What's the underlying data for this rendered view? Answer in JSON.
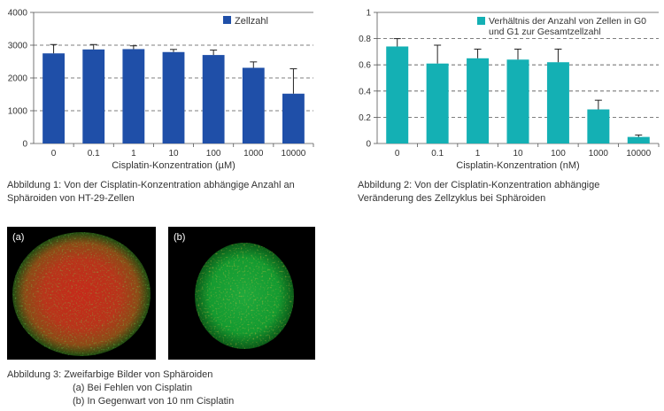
{
  "charts": {
    "left": {
      "type": "bar",
      "color": "#1f4fa8",
      "categories": [
        "0",
        "0.1",
        "1",
        "10",
        "100",
        "1000",
        "10000"
      ],
      "values": [
        2750,
        2870,
        2880,
        2790,
        2700,
        2310,
        1520
      ],
      "errors": [
        270,
        150,
        100,
        80,
        150,
        180,
        760
      ],
      "ylim": [
        0,
        4000
      ],
      "yticks": [
        "0",
        "1000",
        "2000",
        "3000",
        "4000"
      ],
      "xlabel": "Cisplatin-Konzentration (µM)",
      "legend": "Zellzahl"
    },
    "right": {
      "type": "bar",
      "color": "#14b0b4",
      "categories": [
        "0",
        "0.1",
        "1",
        "10",
        "100",
        "1000",
        "10000"
      ],
      "values": [
        0.74,
        0.61,
        0.65,
        0.64,
        0.62,
        0.26,
        0.05
      ],
      "errors": [
        0.06,
        0.14,
        0.07,
        0.08,
        0.1,
        0.07,
        0.015
      ],
      "ylim": [
        0,
        1.0
      ],
      "yticks": [
        "0",
        "0.2",
        "0.4",
        "0.6",
        "0.8",
        "1"
      ],
      "xlabel": "Cisplatin-Konzentration (nM)",
      "legend": [
        "Verhältnis der Anzahl von Zellen in G0",
        "und G1 zur Gesamtzellzahl"
      ]
    }
  },
  "chart_data": [
    {
      "type": "bar",
      "categories": [
        "0",
        "0.1",
        "1",
        "10",
        "100",
        "1000",
        "10000"
      ],
      "series": [
        {
          "name": "Zellzahl",
          "values": [
            2750,
            2870,
            2880,
            2790,
            2700,
            2310,
            1520
          ]
        }
      ],
      "xlabel": "Cisplatin-Konzentration (µM)",
      "ylabel": "",
      "ylim": [
        0,
        4000
      ],
      "grid": true,
      "legend": "top-right"
    },
    {
      "type": "bar",
      "categories": [
        "0",
        "0.1",
        "1",
        "10",
        "100",
        "1000",
        "10000"
      ],
      "series": [
        {
          "name": "Verhältnis der Anzahl von Zellen in G0 und G1 zur Gesamtzellzahl",
          "values": [
            0.74,
            0.61,
            0.65,
            0.64,
            0.62,
            0.26,
            0.05
          ]
        }
      ],
      "xlabel": "Cisplatin-Konzentration (nM)",
      "ylabel": "",
      "ylim": [
        0,
        1.0
      ],
      "grid": true,
      "legend": "top-right"
    }
  ],
  "captions": {
    "fig1": [
      "Abbildung 1: Von der Cisplatin-Konzentration abhängige Anzahl an",
      "Sphäroiden von HT-29-Zellen"
    ],
    "fig2": [
      "Abbildung 2: Von der Cisplatin-Konzentration abhängige",
      "Veränderung des Zellzyklus bei Sphäroiden"
    ],
    "fig3": "Abbildung 3: Zweifarbige Bilder von Sphäroiden",
    "fig3a": "(a) Bei Fehlen von Cisplatin",
    "fig3b": "(b) In Gegenwart von 10 nm Cisplatin"
  },
  "images": {
    "a_label": "(a)",
    "b_label": "(b)"
  }
}
